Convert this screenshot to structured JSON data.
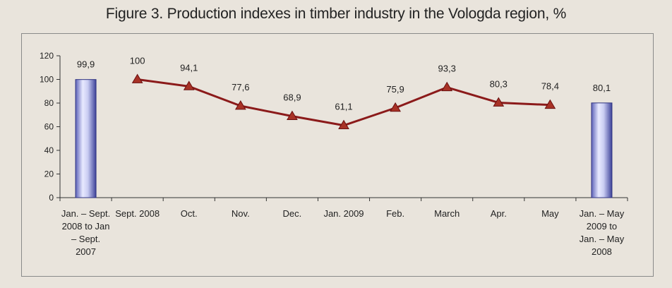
{
  "title": "Figure 3. Production indexes in timber industry in the Vologda region, %",
  "chart_data": {
    "type": "bar+line",
    "title": "Figure 3. Production indexes in timber industry in the Vologda region, %",
    "ylim": [
      0,
      120
    ],
    "yticks": [
      0,
      20,
      40,
      60,
      80,
      100,
      120
    ],
    "categories": [
      [
        "Jan. – Sept.",
        "2008 to Jan",
        "– Sept.",
        "2007"
      ],
      [
        "Sept. 2008"
      ],
      [
        "Oct."
      ],
      [
        "Nov."
      ],
      [
        "Dec."
      ],
      [
        "Jan. 2009"
      ],
      [
        "Feb."
      ],
      [
        "March"
      ],
      [
        "Apr."
      ],
      [
        "May"
      ],
      [
        "Jan. – May",
        "2009 to",
        "Jan. – May",
        "2008"
      ]
    ],
    "bars": [
      {
        "category_index": 0,
        "value": 99.9,
        "label": "99,9"
      },
      {
        "category_index": 10,
        "value": 80.1,
        "label": "80,1"
      }
    ],
    "line": {
      "start_index": 1,
      "values": [
        100,
        94.1,
        77.6,
        68.9,
        61.1,
        75.9,
        93.3,
        80.3,
        78.4
      ],
      "labels": [
        "100",
        "94,1",
        "77,6",
        "68,9",
        "61,1",
        "75,9",
        "93,3",
        "80,3",
        "78,4"
      ],
      "color": "#8b1a1a",
      "marker_fill": "#a83226",
      "marker": "triangle"
    },
    "bar_color": "#5a5fb0",
    "grid": false
  }
}
